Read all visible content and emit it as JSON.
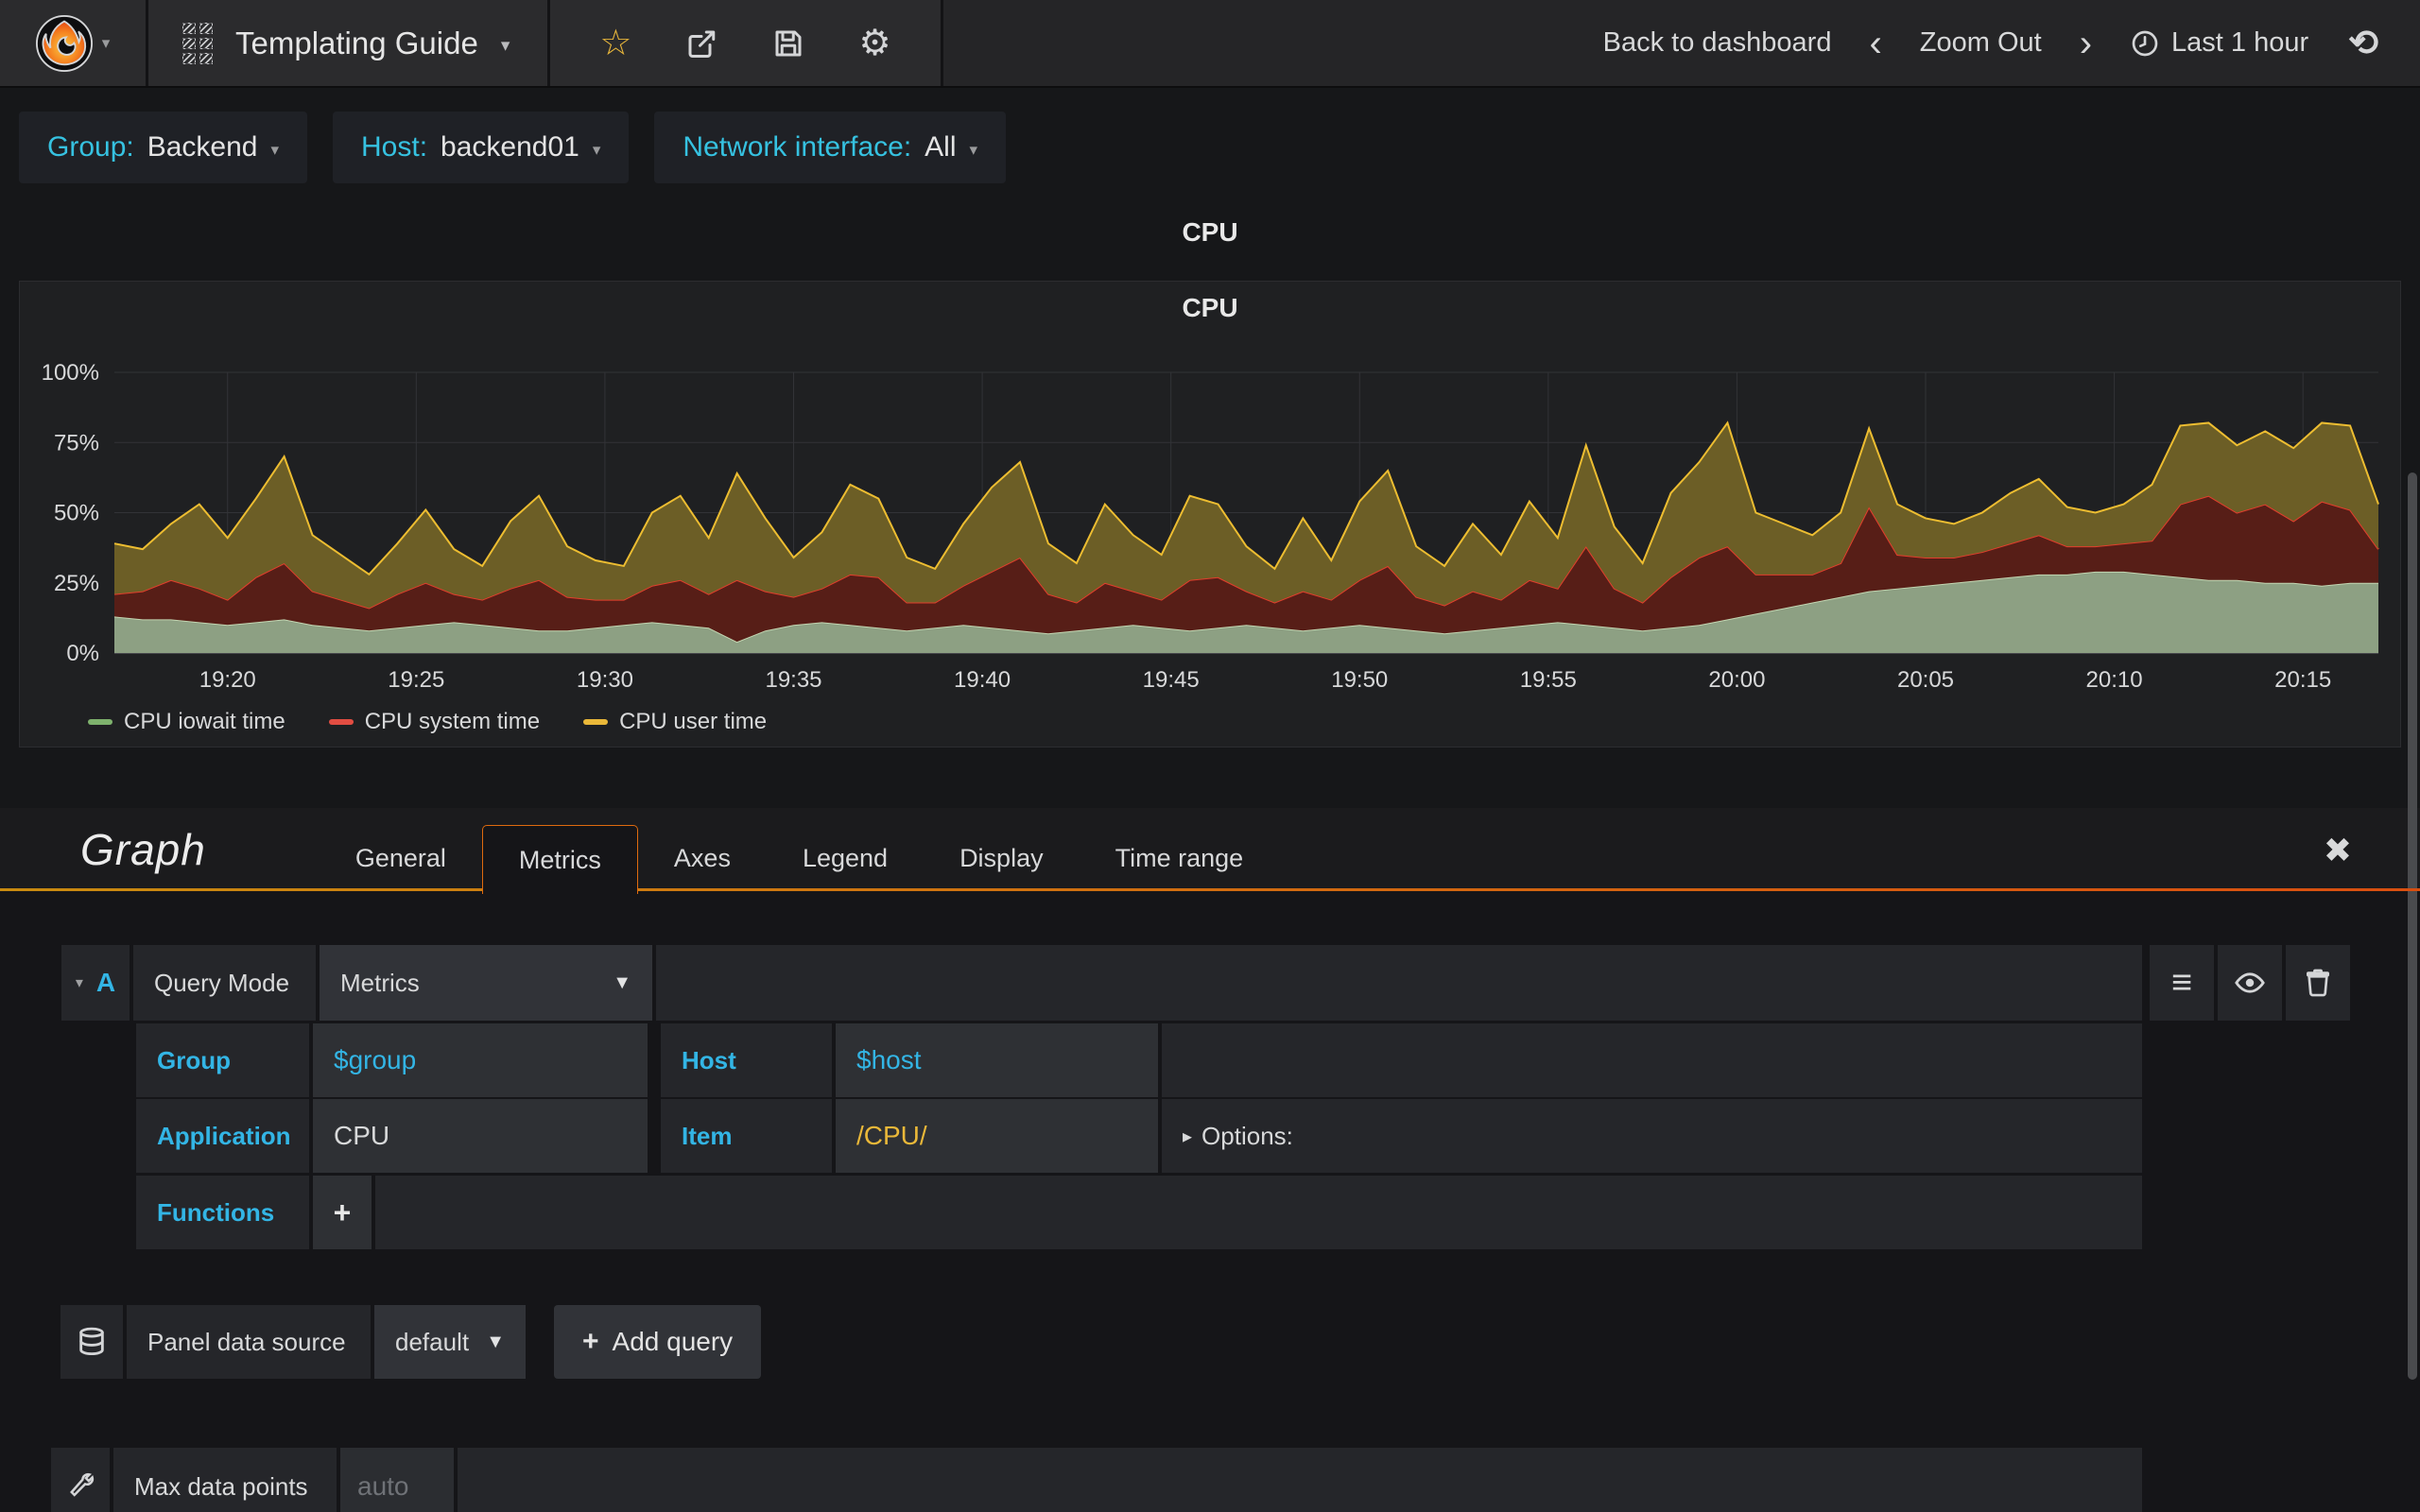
{
  "navbar": {
    "title": "Templating Guide",
    "back_label": "Back to dashboard",
    "zoom_out_label": "Zoom Out",
    "time_label": "Last 1 hour"
  },
  "variables": [
    {
      "label": "Group:",
      "value": "Backend"
    },
    {
      "label": "Host:",
      "value": "backend01"
    },
    {
      "label": "Network interface:",
      "value": "All"
    }
  ],
  "panel": {
    "header": "CPU",
    "title": "CPU"
  },
  "chart_data": {
    "type": "area",
    "stacked": true,
    "title": "CPU",
    "ylim": [
      0,
      100
    ],
    "y_ticks": [
      {
        "v": 0,
        "label": "0%"
      },
      {
        "v": 25,
        "label": "25%"
      },
      {
        "v": 50,
        "label": "50%"
      },
      {
        "v": 75,
        "label": "75%"
      },
      {
        "v": 100,
        "label": "100%"
      }
    ],
    "t_domain_minutes": [
      0,
      60
    ],
    "point_interval_min": 0.75,
    "x_ticks": [
      {
        "label": "19:20",
        "t": 3
      },
      {
        "label": "19:25",
        "t": 8
      },
      {
        "label": "19:30",
        "t": 13
      },
      {
        "label": "19:35",
        "t": 18
      },
      {
        "label": "19:40",
        "t": 23
      },
      {
        "label": "19:45",
        "t": 28
      },
      {
        "label": "19:50",
        "t": 33
      },
      {
        "label": "19:55",
        "t": 38
      },
      {
        "label": "20:00",
        "t": 43
      },
      {
        "label": "20:05",
        "t": 48
      },
      {
        "label": "20:10",
        "t": 53
      },
      {
        "label": "20:15",
        "t": 58
      }
    ],
    "legend_position": "bottom",
    "grid": true,
    "series": [
      {
        "name": "CPU iowait time",
        "color": "#7eb26d",
        "fill": "#8da083",
        "stroke": "#c3d6b2",
        "values": [
          13,
          12,
          12,
          11,
          10,
          11,
          12,
          10,
          9,
          8,
          9,
          10,
          11,
          10,
          9,
          8,
          8,
          9,
          10,
          11,
          10,
          9,
          4,
          8,
          10,
          11,
          10,
          9,
          8,
          9,
          10,
          9,
          8,
          7,
          8,
          9,
          10,
          9,
          8,
          9,
          10,
          9,
          8,
          9,
          10,
          9,
          8,
          7,
          8,
          9,
          10,
          11,
          10,
          9,
          8,
          9,
          10,
          12,
          14,
          16,
          18,
          20,
          22,
          23,
          24,
          25,
          26,
          27,
          28,
          28,
          29,
          29,
          28,
          27,
          26,
          26,
          25,
          25,
          24,
          25,
          25
        ]
      },
      {
        "name": "CPU system time",
        "color": "#e24d42",
        "fill": "#571e17",
        "stroke": "#e23e2c",
        "values": [
          8,
          10,
          14,
          12,
          9,
          16,
          20,
          12,
          10,
          8,
          12,
          15,
          10,
          9,
          14,
          18,
          12,
          10,
          9,
          13,
          16,
          12,
          22,
          14,
          10,
          12,
          18,
          18,
          10,
          9,
          14,
          20,
          26,
          14,
          10,
          16,
          12,
          10,
          18,
          18,
          12,
          9,
          14,
          10,
          16,
          22,
          12,
          10,
          14,
          10,
          16,
          12,
          28,
          14,
          10,
          18,
          24,
          26,
          14,
          12,
          10,
          12,
          30,
          12,
          10,
          9,
          10,
          12,
          14,
          10,
          9,
          10,
          12,
          26,
          30,
          24,
          28,
          22,
          30,
          26,
          12
        ]
      },
      {
        "name": "CPU user time",
        "color": "#eab839",
        "fill": "#6c5e26",
        "stroke": "#edbd31",
        "values": [
          18,
          15,
          20,
          30,
          22,
          28,
          38,
          20,
          16,
          12,
          18,
          26,
          16,
          12,
          24,
          30,
          18,
          14,
          12,
          26,
          30,
          20,
          38,
          26,
          14,
          20,
          32,
          28,
          16,
          12,
          22,
          30,
          34,
          18,
          14,
          28,
          20,
          16,
          30,
          26,
          16,
          12,
          26,
          14,
          28,
          34,
          18,
          14,
          24,
          16,
          28,
          18,
          36,
          22,
          14,
          30,
          34,
          44,
          22,
          18,
          14,
          18,
          28,
          18,
          14,
          12,
          14,
          18,
          20,
          14,
          12,
          14,
          20,
          28,
          26,
          24,
          26,
          26,
          28,
          30,
          16
        ]
      }
    ]
  },
  "editor": {
    "panel_type": "Graph",
    "tabs": [
      "General",
      "Metrics",
      "Axes",
      "Legend",
      "Display",
      "Time range"
    ],
    "active_tab": "Metrics",
    "query": {
      "ref": "A",
      "mode_label": "Query Mode",
      "mode_value": "Metrics",
      "group_label": "Group",
      "group_value": "$group",
      "host_label": "Host",
      "host_value": "$host",
      "app_label": "Application",
      "app_value": "CPU",
      "item_label": "Item",
      "item_value": "/CPU/",
      "options_label": "Options:",
      "functions_label": "Functions",
      "add_function_label": "+"
    },
    "datasource": {
      "label": "Panel data source",
      "value": "default",
      "add_query_label": "Add query"
    },
    "max_points": {
      "label": "Max data points",
      "placeholder": "auto"
    }
  },
  "colors": {
    "accent_blue": "#33b5e5",
    "accent_yellow": "#eab839",
    "tab_orange": "#df6a0e"
  }
}
